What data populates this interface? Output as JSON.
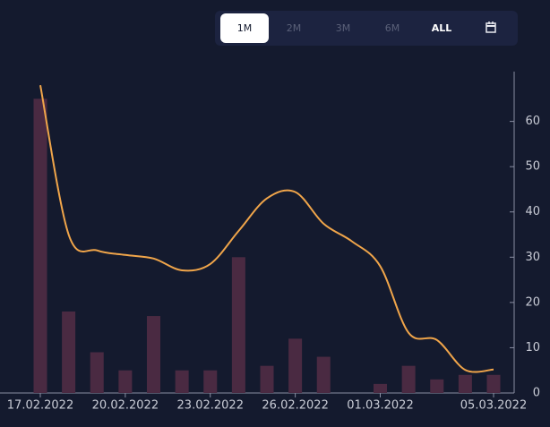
{
  "range_buttons": [
    "1M",
    "2M",
    "3M",
    "6M",
    "ALL"
  ],
  "selected_range": 0,
  "chart_data": {
    "type": "bar",
    "categories": [
      "17.02.2022",
      null,
      null,
      "20.02.2022",
      null,
      null,
      "23.02.2022",
      null,
      null,
      "26.02.2022",
      null,
      null,
      "01.03.2022",
      null,
      null,
      null,
      "05.03.2022"
    ],
    "series": [
      {
        "type": "bar",
        "color": "#4a2a42",
        "values": [
          65,
          18,
          9,
          5,
          17,
          5,
          5,
          30,
          6,
          12,
          8,
          0,
          2,
          6,
          3,
          4,
          4
        ]
      },
      {
        "type": "line",
        "color": "#f0a54a",
        "values": [
          68,
          35,
          31.5,
          30.5,
          29.7,
          27.1,
          28.5,
          35.8,
          43,
          44.4,
          37.4,
          33.5,
          28,
          13.3,
          11.7,
          5.1,
          5.2
        ]
      }
    ],
    "ylim": [
      0,
      71
    ],
    "yticks": [
      0,
      10,
      20,
      30,
      40,
      50,
      60
    ],
    "grid": false
  }
}
